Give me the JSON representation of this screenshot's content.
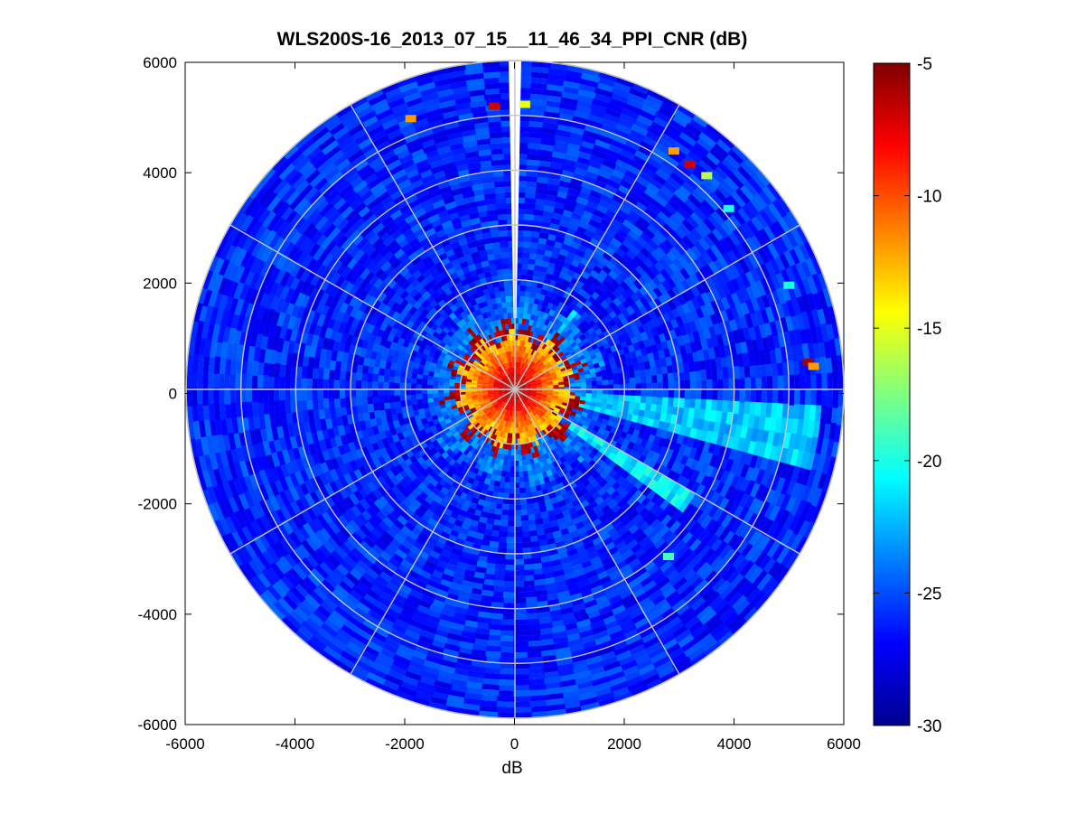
{
  "chart_data": {
    "type": "heatmap",
    "subtype": "polar-ppi",
    "title": "WLS200S-16_2013_07_15__11_46_34_PPI_CNR (dB)",
    "xlabel": "dB",
    "ylabel": "",
    "xlim": [
      -6000,
      6000
    ],
    "ylim": [
      -6000,
      6000
    ],
    "x_ticks": [
      -6000,
      -4000,
      -2000,
      0,
      2000,
      4000,
      6000
    ],
    "y_ticks": [
      -6000,
      -4000,
      -2000,
      0,
      2000,
      4000,
      6000
    ],
    "x_tick_labels": [
      "-6000",
      "-4000",
      "-2000",
      "0",
      "2000",
      "4000",
      "6000"
    ],
    "y_tick_labels": [
      "-6000",
      "-4000",
      "-2000",
      "0",
      "2000",
      "4000",
      "6000"
    ],
    "max_range": 6000,
    "range_rings": [
      1000,
      2000,
      3000,
      4000,
      5000,
      6000
    ],
    "radial_lines_deg": [
      0,
      30,
      60,
      90,
      120,
      150,
      180,
      210,
      240,
      270,
      300,
      330
    ],
    "colorbar": {
      "clim": [
        -30,
        -5
      ],
      "ticks": [
        -5,
        -10,
        -15,
        -20,
        -25,
        -30
      ],
      "tick_labels": [
        "-5",
        "-10",
        "-15",
        "-20",
        "-25",
        "-30"
      ],
      "colormap": "jet"
    },
    "background_value_db": -26,
    "near_field": {
      "radius": 1100,
      "inner_peak_db": -9,
      "edge_db": -5
    },
    "blocked_sector": {
      "bearing_deg": 0,
      "width_deg": 2.2
    },
    "enhanced_sectors": [
      {
        "bearing_deg": 100,
        "width_deg": 12,
        "value_db": -22,
        "range": [
          1000,
          5600
        ]
      },
      {
        "bearing_deg": 123,
        "width_deg": 6,
        "value_db": -21,
        "range": [
          1200,
          3800
        ]
      },
      {
        "bearing_deg": 38,
        "width_deg": 4,
        "value_db": -22,
        "range": [
          900,
          1800
        ]
      }
    ],
    "hotspots": [
      {
        "x": -380,
        "y": 5170,
        "value_db": -7
      },
      {
        "x": 180,
        "y": 5200,
        "value_db": -15
      },
      {
        "x": -1900,
        "y": 4940,
        "value_db": -12
      },
      {
        "x": 2900,
        "y": 4350,
        "value_db": -12
      },
      {
        "x": 3200,
        "y": 4100,
        "value_db": -7
      },
      {
        "x": 3500,
        "y": 3900,
        "value_db": -16
      },
      {
        "x": 5350,
        "y": 500,
        "value_db": -6
      },
      {
        "x": 5450,
        "y": 420,
        "value_db": -12
      },
      {
        "x": 2800,
        "y": -3050,
        "value_db": -19
      },
      {
        "x": 5000,
        "y": 1900,
        "value_db": -20
      },
      {
        "x": 3900,
        "y": 3300,
        "value_db": -20
      }
    ]
  }
}
